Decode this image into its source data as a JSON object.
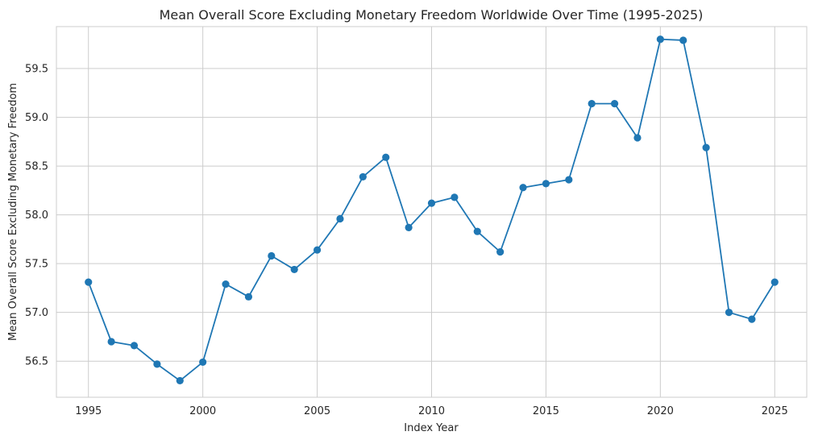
{
  "chart_data": {
    "type": "line",
    "title": "Mean Overall Score Excluding Monetary Freedom Worldwide Over Time (1995-2025)",
    "xlabel": "Index Year",
    "ylabel": "Mean Overall Score Excluding Monetary Freedom",
    "xlim": [
      1993.6,
      2026.4
    ],
    "ylim": [
      56.13,
      59.93
    ],
    "x_ticks": [
      1995,
      2000,
      2005,
      2010,
      2015,
      2020,
      2025
    ],
    "x_tick_labels": [
      "1995",
      "2000",
      "2005",
      "2010",
      "2015",
      "2020",
      "2025"
    ],
    "y_ticks": [
      56.5,
      57.0,
      57.5,
      58.0,
      58.5,
      59.0,
      59.5
    ],
    "y_tick_labels": [
      "56.5",
      "57.0",
      "57.5",
      "58.0",
      "58.5",
      "59.0",
      "59.5"
    ],
    "grid": true,
    "color": "#1f77b4",
    "marker": "circle",
    "series": [
      {
        "x": [
          1995,
          1996,
          1997,
          1998,
          1999,
          2000,
          2001,
          2002,
          2003,
          2004,
          2005,
          2006,
          2007,
          2008,
          2009,
          2010,
          2011,
          2012,
          2013,
          2014,
          2015,
          2016,
          2017,
          2018,
          2019,
          2020,
          2021,
          2022,
          2023,
          2024,
          2025
        ],
        "y": [
          57.31,
          56.7,
          56.66,
          56.47,
          56.3,
          56.49,
          57.29,
          57.16,
          57.58,
          57.44,
          57.64,
          57.96,
          58.39,
          58.59,
          57.87,
          58.12,
          58.18,
          57.83,
          57.62,
          58.28,
          58.32,
          58.36,
          59.14,
          59.14,
          58.79,
          59.8,
          59.79,
          58.69,
          57.0,
          56.93,
          57.31
        ]
      }
    ]
  }
}
